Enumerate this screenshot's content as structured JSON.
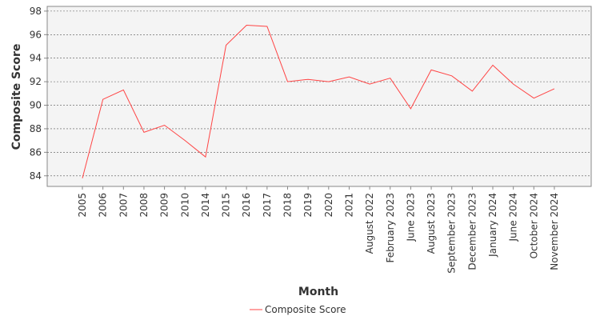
{
  "chart_data": {
    "type": "line",
    "xlabel": "Month",
    "ylabel": "Composite Score",
    "categories": [
      "2005",
      "2006",
      "2007",
      "2008",
      "2009",
      "2010",
      "2014",
      "2015",
      "2016",
      "2017",
      "2018",
      "2019",
      "2020",
      "2021",
      "August 2022",
      "February 2023",
      "June 2023",
      "August 2023",
      "September 2023",
      "December 2023",
      "January 2024",
      "June 2024",
      "October 2024",
      "November 2024"
    ],
    "series": [
      {
        "name": "Composite Score",
        "color": "#ff4444",
        "values": [
          83.8,
          90.5,
          91.3,
          87.7,
          88.3,
          87.0,
          85.6,
          95.1,
          96.8,
          96.7,
          92.0,
          92.2,
          92.0,
          92.4,
          91.8,
          92.3,
          89.7,
          93.0,
          92.5,
          91.2,
          93.4,
          91.8,
          90.6,
          91.4
        ]
      }
    ],
    "yticks": [
      84,
      86,
      88,
      90,
      92,
      94,
      96,
      98
    ],
    "ylim": [
      83.1,
      98.4
    ],
    "grid": true,
    "legend_position": "bottom"
  }
}
